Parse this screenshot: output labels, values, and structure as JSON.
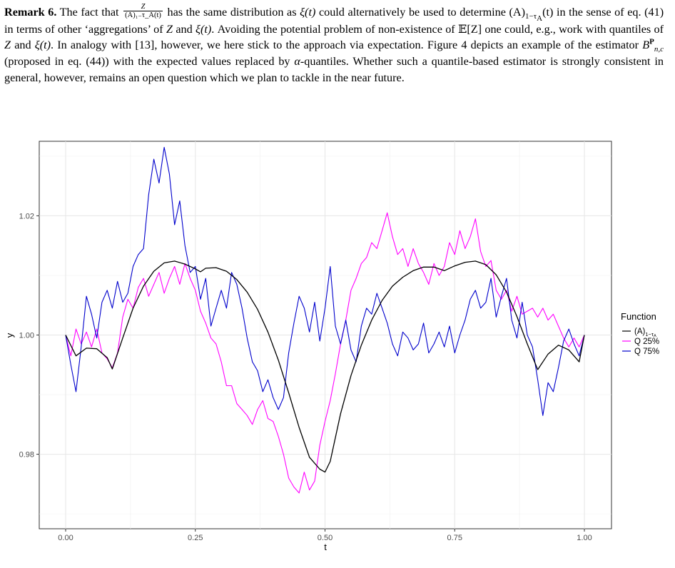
{
  "remark": {
    "label": "Remark 6.",
    "frac_num": "Z",
    "frac_den": "(A)₁₋τ_A(t)",
    "t1": "The fact that",
    "t2": "has the same distribution as",
    "xi_t": "ξ(t)",
    "t3": "could alternatively be used to determine",
    "A_expr": "(A)",
    "A_sub": "1−τ",
    "A_subsub": "A",
    "t_paren": "(t)",
    "t4": "in the sense of eq. (41) in terms of other ‘aggregations’ of",
    "Z": "Z",
    "and": "and",
    "t5": ". Avoiding the potential problem of non-existence of",
    "EZ": "𝔼[Z]",
    "t6": "one could, e.g., work with quantiles of",
    "t7": ". In analogy with [13], however, we here stick to the approach via expectation. Figure 4 depicts an example of the estimator",
    "B": "B",
    "B_sup": "P",
    "B_sub": "n,c",
    "t8": "(proposed in eq. (44)) with the expected values replaced by",
    "alpha": "α",
    "t9": "-quantiles. Whether such a quantile-based estimator is strongly consistent in general, however, remains an open question which we plan to tackle in the near future."
  },
  "chart_data": {
    "type": "line",
    "xlabel": "t",
    "ylabel": "y",
    "xlim": [
      0.0,
      1.0
    ],
    "ylim": [
      0.9675,
      1.0325
    ],
    "x_ticks": [
      0.0,
      0.25,
      0.5,
      0.75,
      1.0
    ],
    "x_tick_labels": [
      "0.00",
      "0.25",
      "0.50",
      "0.75",
      "1.00"
    ],
    "y_ticks": [
      0.98,
      1.0,
      1.02
    ],
    "y_tick_labels": [
      "0.98",
      "1.00",
      "1.02"
    ],
    "grid": true,
    "legend": {
      "title": "Function",
      "placement": "right",
      "entries": [
        {
          "label": "(A)",
          "sub": "1−τ",
          "subsub": "A",
          "color": "#000000"
        },
        {
          "label": "Q 25%",
          "color": "#ff00ff"
        },
        {
          "label": "Q 75%",
          "color": "#0000cc"
        }
      ]
    },
    "series": [
      {
        "name": "(A)1−τA",
        "color": "#000000",
        "x": [
          0.0,
          0.02,
          0.04,
          0.06,
          0.08,
          0.09,
          0.11,
          0.13,
          0.15,
          0.17,
          0.19,
          0.21,
          0.23,
          0.25,
          0.26,
          0.27,
          0.29,
          0.31,
          0.33,
          0.35,
          0.37,
          0.39,
          0.41,
          0.43,
          0.45,
          0.47,
          0.49,
          0.5,
          0.51,
          0.53,
          0.55,
          0.57,
          0.59,
          0.61,
          0.63,
          0.65,
          0.67,
          0.69,
          0.71,
          0.73,
          0.75,
          0.77,
          0.79,
          0.81,
          0.83,
          0.85,
          0.87,
          0.89,
          0.91,
          0.93,
          0.95,
          0.97,
          0.99,
          1.0
        ],
        "y": [
          1.0,
          0.9965,
          0.9978,
          0.9977,
          0.9962,
          0.9943,
          0.9995,
          1.0045,
          1.0082,
          1.0107,
          1.0121,
          1.0124,
          1.0119,
          1.0111,
          1.0106,
          1.0112,
          1.0113,
          1.0107,
          1.0093,
          1.0072,
          1.0043,
          1.0005,
          0.9958,
          0.9903,
          0.9845,
          0.9795,
          0.9775,
          0.977,
          0.9788,
          0.9868,
          0.9932,
          0.9983,
          1.0025,
          1.0058,
          1.0082,
          1.0097,
          1.0108,
          1.0114,
          1.0114,
          1.0108,
          1.0116,
          1.0122,
          1.0124,
          1.0118,
          1.0101,
          1.0072,
          1.0031,
          0.9985,
          0.9942,
          0.9968,
          0.9983,
          0.9975,
          0.9955,
          1.0
        ]
      },
      {
        "name": "Q 25%",
        "color": "#ff00ff",
        "x": [
          0.0,
          0.01,
          0.02,
          0.03,
          0.04,
          0.05,
          0.06,
          0.07,
          0.08,
          0.09,
          0.1,
          0.11,
          0.12,
          0.13,
          0.14,
          0.15,
          0.16,
          0.17,
          0.18,
          0.19,
          0.2,
          0.21,
          0.22,
          0.23,
          0.24,
          0.25,
          0.26,
          0.27,
          0.28,
          0.29,
          0.3,
          0.31,
          0.32,
          0.33,
          0.34,
          0.35,
          0.36,
          0.37,
          0.38,
          0.39,
          0.4,
          0.41,
          0.42,
          0.43,
          0.44,
          0.45,
          0.46,
          0.47,
          0.48,
          0.49,
          0.5,
          0.51,
          0.52,
          0.53,
          0.54,
          0.55,
          0.56,
          0.57,
          0.58,
          0.59,
          0.6,
          0.61,
          0.62,
          0.63,
          0.64,
          0.65,
          0.66,
          0.67,
          0.68,
          0.69,
          0.7,
          0.71,
          0.72,
          0.73,
          0.74,
          0.75,
          0.76,
          0.77,
          0.78,
          0.79,
          0.8,
          0.81,
          0.82,
          0.83,
          0.84,
          0.85,
          0.86,
          0.87,
          0.88,
          0.89,
          0.9,
          0.91,
          0.92,
          0.93,
          0.94,
          0.95,
          0.96,
          0.97,
          0.98,
          0.99,
          1.0
        ],
        "y": [
          1.0,
          0.9965,
          1.001,
          0.9985,
          1.0005,
          0.998,
          1.001,
          0.997,
          0.996,
          0.9945,
          0.997,
          1.003,
          1.006,
          1.0045,
          1.008,
          1.0095,
          1.0065,
          1.0085,
          1.0105,
          1.007,
          1.0095,
          1.0115,
          1.0085,
          1.012,
          1.0095,
          1.0075,
          1.004,
          1.002,
          0.9995,
          0.9985,
          0.9955,
          0.9915,
          0.9915,
          0.9885,
          0.9875,
          0.9865,
          0.985,
          0.9875,
          0.989,
          0.986,
          0.9855,
          0.983,
          0.98,
          0.976,
          0.9745,
          0.9735,
          0.977,
          0.974,
          0.9755,
          0.9815,
          0.9855,
          0.989,
          0.9935,
          0.9985,
          1.0025,
          1.0075,
          1.0095,
          1.012,
          1.013,
          1.0155,
          1.0145,
          1.0175,
          1.0205,
          1.0165,
          1.0135,
          1.0145,
          1.0115,
          1.0145,
          1.012,
          1.0105,
          1.0085,
          1.012,
          1.01,
          1.0115,
          1.0155,
          1.0135,
          1.0175,
          1.0145,
          1.0165,
          1.0195,
          1.014,
          1.0115,
          1.0125,
          1.0075,
          1.006,
          1.0075,
          1.004,
          1.0065,
          1.0035,
          1.004,
          1.0045,
          1.003,
          1.0045,
          1.0025,
          1.0035,
          1.0015,
          0.9995,
          0.998,
          0.9995,
          0.998,
          1.0
        ]
      },
      {
        "name": "Q 75%",
        "color": "#0000cc",
        "x": [
          0.0,
          0.01,
          0.02,
          0.03,
          0.04,
          0.05,
          0.06,
          0.07,
          0.08,
          0.09,
          0.1,
          0.11,
          0.12,
          0.13,
          0.14,
          0.15,
          0.16,
          0.17,
          0.18,
          0.19,
          0.2,
          0.21,
          0.22,
          0.23,
          0.24,
          0.25,
          0.26,
          0.27,
          0.28,
          0.29,
          0.3,
          0.31,
          0.32,
          0.33,
          0.34,
          0.35,
          0.36,
          0.37,
          0.38,
          0.39,
          0.4,
          0.41,
          0.42,
          0.43,
          0.44,
          0.45,
          0.46,
          0.47,
          0.48,
          0.49,
          0.5,
          0.51,
          0.52,
          0.53,
          0.54,
          0.55,
          0.56,
          0.57,
          0.58,
          0.59,
          0.6,
          0.61,
          0.62,
          0.63,
          0.64,
          0.65,
          0.66,
          0.67,
          0.68,
          0.69,
          0.7,
          0.71,
          0.72,
          0.73,
          0.74,
          0.75,
          0.76,
          0.77,
          0.78,
          0.79,
          0.8,
          0.81,
          0.82,
          0.83,
          0.84,
          0.85,
          0.86,
          0.87,
          0.88,
          0.89,
          0.9,
          0.91,
          0.92,
          0.93,
          0.94,
          0.95,
          0.96,
          0.97,
          0.98,
          0.99,
          1.0
        ],
        "y": [
          1.0,
          0.995,
          0.9905,
          0.998,
          1.0065,
          1.0035,
          0.9995,
          1.0055,
          1.0075,
          1.0045,
          1.009,
          1.0055,
          1.007,
          1.0115,
          1.0135,
          1.0145,
          1.0235,
          1.0295,
          1.0255,
          1.0315,
          1.027,
          1.0185,
          1.0225,
          1.015,
          1.0105,
          1.0115,
          1.006,
          1.0095,
          1.0015,
          1.0045,
          1.0075,
          1.0045,
          1.0105,
          1.0085,
          1.0045,
          0.9995,
          0.9955,
          0.994,
          0.9905,
          0.9925,
          0.9895,
          0.9875,
          0.9895,
          0.997,
          1.002,
          1.0065,
          1.0045,
          1.0005,
          1.0055,
          0.999,
          1.0045,
          1.0115,
          1.0015,
          0.9985,
          1.0025,
          0.9975,
          0.9955,
          1.0015,
          1.0045,
          1.0035,
          1.007,
          1.0045,
          1.002,
          0.9985,
          0.9965,
          1.0005,
          0.9995,
          0.9975,
          0.9985,
          1.002,
          0.997,
          0.9985,
          1.0005,
          0.998,
          1.0015,
          0.997,
          1.0,
          1.0025,
          1.006,
          1.0075,
          1.0045,
          1.0055,
          1.0095,
          1.003,
          1.0065,
          1.0095,
          1.0025,
          0.9995,
          1.0055,
          1.0,
          0.998,
          0.9925,
          0.9865,
          0.992,
          0.9905,
          0.9945,
          0.999,
          1.001,
          0.9985,
          0.9965,
          1.0
        ]
      }
    ]
  }
}
